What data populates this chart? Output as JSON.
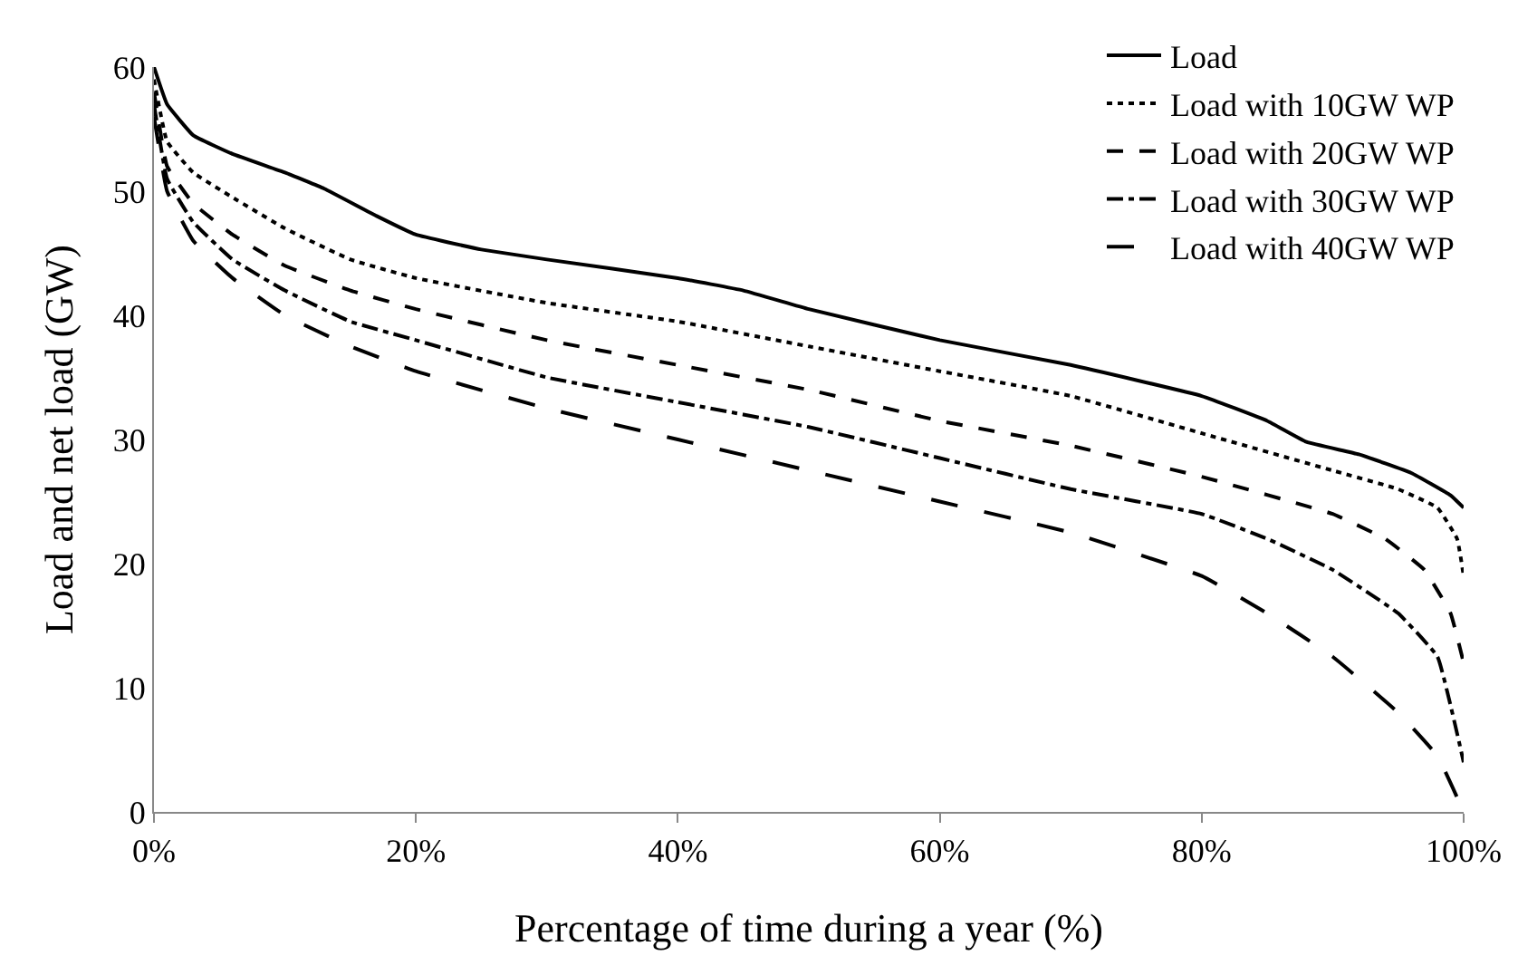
{
  "chart_data": {
    "type": "line",
    "xlabel": "Percentage of time during a year (%)",
    "ylabel": "Load and net load (GW)",
    "xlim": [
      0,
      100
    ],
    "xticks": [
      {
        "value": 0,
        "label": "0%"
      },
      {
        "value": 20,
        "label": "20%"
      },
      {
        "value": 40,
        "label": "40%"
      },
      {
        "value": 60,
        "label": "60%"
      },
      {
        "value": 80,
        "label": "80%"
      },
      {
        "value": 100,
        "label": "100%"
      }
    ],
    "ylim": [
      0,
      60
    ],
    "yticks": [
      0,
      10,
      20,
      30,
      40,
      50,
      60
    ],
    "grid": false,
    "legend": "top right",
    "marker": "none",
    "series": [
      {
        "name": "Load",
        "color": "#000000",
        "line_style": "solid",
        "x": [
          0,
          1,
          3,
          6,
          10,
          13,
          17,
          20,
          25,
          30,
          40,
          45,
          50,
          60,
          70,
          80,
          85,
          88,
          92,
          96,
          99,
          100
        ],
        "values": [
          60,
          57,
          54.5,
          53,
          51.5,
          50.2,
          48,
          46.5,
          45.3,
          44.5,
          43,
          42,
          40.5,
          38,
          36,
          33.5,
          31.5,
          29.8,
          28.8,
          27.3,
          25.5,
          24.5
        ]
      },
      {
        "name": "Load with 10GW WP",
        "color": "#000000",
        "line_style": "dotted",
        "x": [
          0,
          1,
          3,
          6,
          10,
          15,
          20,
          30,
          40,
          50,
          60,
          70,
          80,
          90,
          95,
          98,
          99.5,
          100
        ],
        "values": [
          59,
          54,
          51.5,
          49.5,
          47,
          44.5,
          43,
          41,
          39.5,
          37.5,
          35.5,
          33.5,
          30.5,
          27.5,
          26,
          24.5,
          22,
          19
        ]
      },
      {
        "name": "Load with 20GW WP",
        "color": "#000000",
        "line_style": "dashed",
        "x": [
          0,
          1,
          3,
          6,
          10,
          15,
          20,
          30,
          40,
          50,
          60,
          70,
          80,
          90,
          94,
          97,
          99,
          100
        ],
        "values": [
          58,
          52,
          49,
          46.5,
          44,
          42,
          40.5,
          38,
          36,
          34,
          31.5,
          29.5,
          27,
          24,
          22,
          19.5,
          16,
          12
        ]
      },
      {
        "name": "Load with 30GW WP",
        "color": "#000000",
        "line_style": "dashdot",
        "x": [
          0,
          1,
          3,
          6,
          10,
          15,
          20,
          30,
          40,
          50,
          60,
          70,
          80,
          85,
          90,
          95,
          98,
          100
        ],
        "values": [
          57,
          51,
          47.5,
          44.5,
          42,
          39.5,
          38,
          35,
          33,
          31,
          28.5,
          26,
          24,
          22,
          19.5,
          16,
          12.5,
          4
        ]
      },
      {
        "name": "Load with 40GW WP",
        "color": "#000000",
        "line_style": "longdash",
        "x": [
          0,
          1,
          3,
          6,
          10,
          15,
          20,
          30,
          40,
          50,
          60,
          70,
          80,
          85,
          90,
          95,
          98,
          100
        ],
        "values": [
          56,
          50,
          46,
          43,
          40,
          37.5,
          35.5,
          32.5,
          30,
          27.5,
          25,
          22.5,
          19,
          16,
          12.5,
          8,
          4.5,
          0
        ]
      }
    ]
  }
}
